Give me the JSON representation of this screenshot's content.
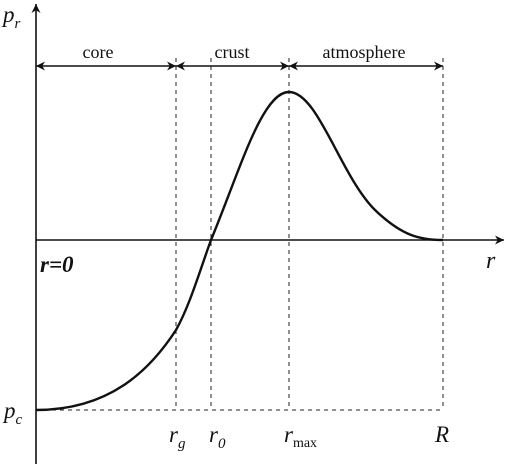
{
  "axes": {
    "y_label_main": "p",
    "y_label_sub": "r",
    "x_label": "r",
    "origin_label": "r=0"
  },
  "regions": {
    "core": "core",
    "crust": "crust",
    "atmosphere": "atmosphere"
  },
  "left_labels": {
    "pc_main": "p",
    "pc_sub": "c"
  },
  "x_ticks": {
    "rg_main": "r",
    "rg_sub": "g",
    "r0_main": "r",
    "r0_sub": "0",
    "rmax_main": "r",
    "rmax_sub": "max",
    "R": "R"
  }
}
